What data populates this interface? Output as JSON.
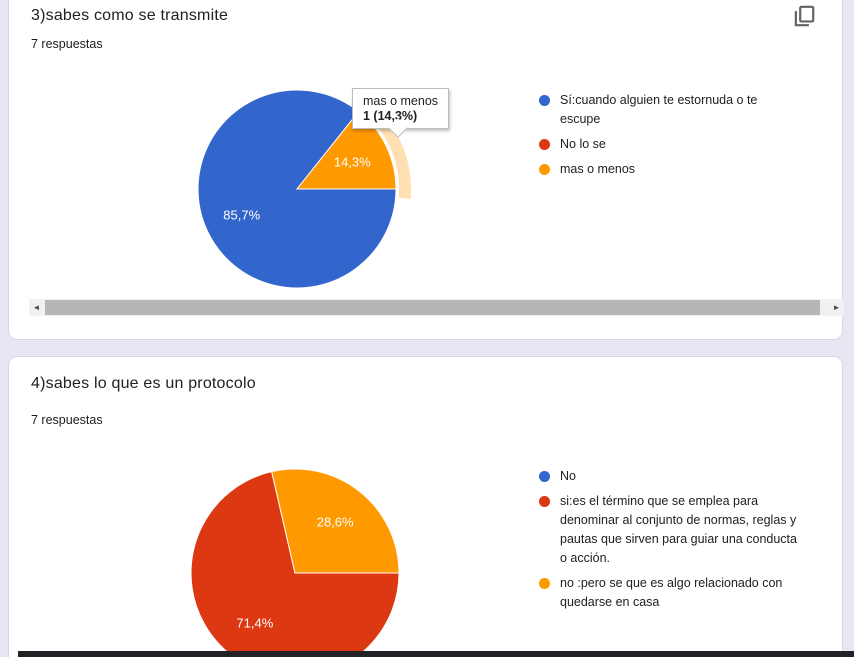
{
  "theme": {
    "background": "#e9e5f2",
    "card_background": "#ffffff",
    "card_border": "#dad4e8",
    "title_color": "#202124",
    "pct_label_color": "#ffffff",
    "highlight_ring_color": "rgba(255,153,0,0.3)",
    "bottom_edge_color": "#232327"
  },
  "palette": {
    "blue": "#3366CC",
    "red": "#DC3912",
    "orange": "#FF9900"
  },
  "cards": [
    {
      "title": "3)sabes como se transmite",
      "responses": "7 respuestas",
      "copy_icon": "copy-icon",
      "tooltip": {
        "label": "mas o menos",
        "value": "1 (14,3%)"
      },
      "legend": [
        {
          "label": "Sí:cuando alguien te estornuda o te escupe",
          "color": "#3366CC"
        },
        {
          "label": "No lo se",
          "color": "#DC3912"
        },
        {
          "label": "mas o menos",
          "color": "#FF9900"
        }
      ],
      "scrollbar": {
        "left_arrow": "◄",
        "right_arrow": "►"
      }
    },
    {
      "title": "4)sabes lo que es un protocolo",
      "responses": "7 respuestas",
      "legend": [
        {
          "label": "No",
          "color": "#3366CC"
        },
        {
          "label": "si:es el término que se emplea para denominar al conjunto de normas, reglas y pautas que sirven para guiar una conducta o acción.",
          "color": "#DC3912"
        },
        {
          "label": "no :pero se que es algo relacionado con quedarse en casa",
          "color": "#FF9900"
        }
      ]
    }
  ],
  "chart_data": [
    {
      "type": "pie",
      "title": "3)sabes como se transmite",
      "subtitle": "7 respuestas",
      "responses": 7,
      "start_angle_deg": 90,
      "direction": "clockwise",
      "legend_position": "right",
      "slices": [
        {
          "label": "Sí:cuando alguien te estornuda o te escupe",
          "percent": 85.7,
          "pct": "85,7%",
          "color": "#3366CC"
        },
        {
          "label": "No lo se",
          "percent": 0,
          "color": "#DC3912"
        },
        {
          "label": "mas o menos",
          "percent": 14.3,
          "pct": "14,3%",
          "count": 1,
          "color": "#FF9900",
          "highlighted": true
        }
      ]
    },
    {
      "type": "pie",
      "title": "4)sabes lo que es un protocolo",
      "subtitle": "7 respuestas",
      "responses": 7,
      "start_angle_deg": 90,
      "direction": "clockwise",
      "legend_position": "right",
      "slices": [
        {
          "label": "No",
          "percent": 0,
          "color": "#3366CC"
        },
        {
          "label": "si:es el término que se emplea para denominar al conjunto de normas, reglas y pautas que sirven para guiar una conducta o acción.",
          "percent": 71.4,
          "pct": "71,4%",
          "color": "#DC3912"
        },
        {
          "label": "no :pero se que es algo relacionado con quedarse en casa",
          "percent": 28.6,
          "pct": "28,6%",
          "color": "#FF9900"
        }
      ]
    }
  ]
}
